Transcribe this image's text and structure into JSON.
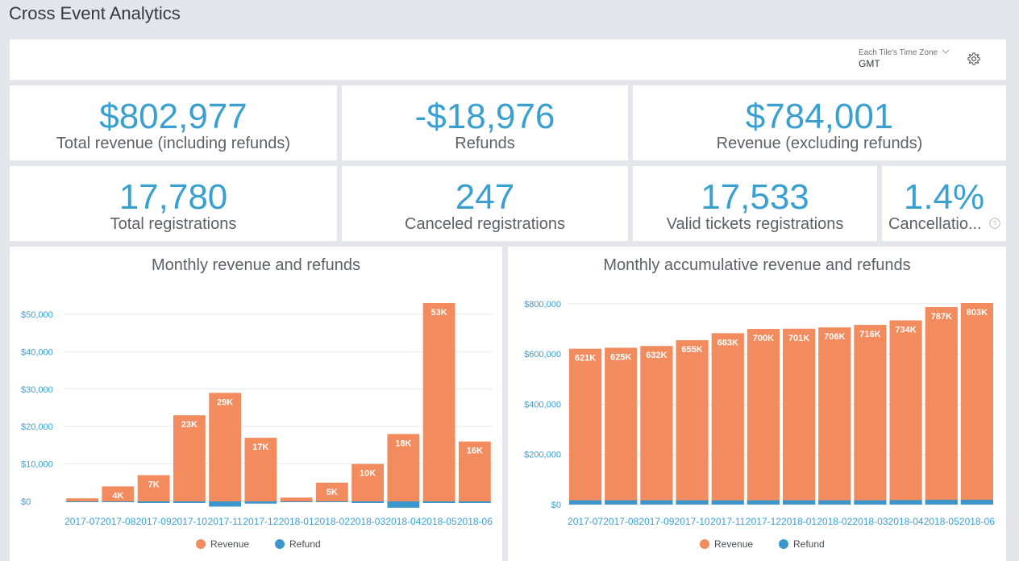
{
  "page": {
    "title": "Cross Event Analytics"
  },
  "filter": {
    "timezone_label": "Each Tile's Time Zone",
    "timezone_value": "GMT"
  },
  "kpis": {
    "total_revenue": {
      "value": "$802,977",
      "label": "Total revenue (including refunds)"
    },
    "refunds": {
      "value": "-$18,976",
      "label": "Refunds"
    },
    "revenue_excl": {
      "value": "$784,001",
      "label": "Revenue (excluding refunds)"
    },
    "total_registrations": {
      "value": "17,780",
      "label": "Total registrations"
    },
    "canceled_registrations": {
      "value": "247",
      "label": "Canceled registrations"
    },
    "valid_tickets": {
      "value": "17,533",
      "label": "Valid tickets registrations"
    },
    "cancellation_rate": {
      "value": "1.4%",
      "label": "Cancellatio..."
    }
  },
  "colors": {
    "revenue": "#f28b5e",
    "refund": "#3b96cc",
    "axis_text": "#3aa0d0",
    "grid": "#e6e8ec"
  },
  "chart_data": [
    {
      "type": "bar",
      "title": "Monthly revenue and refunds",
      "categories": [
        "2017-07",
        "2017-08",
        "2017-09",
        "2017-10",
        "2017-11",
        "2017-12",
        "2018-01",
        "2018-02",
        "2018-03",
        "2018-04",
        "2018-05",
        "2018-06"
      ],
      "series": [
        {
          "name": "Revenue",
          "values": [
            800,
            4000,
            7000,
            23000,
            29000,
            17000,
            1000,
            5000,
            10000,
            18000,
            53000,
            16000
          ]
        },
        {
          "name": "Refund",
          "values": [
            0,
            0,
            -200,
            -300,
            -1400,
            -600,
            0,
            0,
            -300,
            -1700,
            -400,
            -200
          ]
        }
      ],
      "data_labels": [
        "",
        "4K",
        "7K",
        "23K",
        "29K",
        "17K",
        "",
        "5K",
        "10K",
        "18K",
        "53K",
        "16K"
      ],
      "yticks": [
        "$0",
        "$10,000",
        "$20,000",
        "$30,000",
        "$40,000",
        "$50,000"
      ],
      "ytick_values": [
        0,
        10000,
        20000,
        30000,
        40000,
        50000
      ],
      "ylim": [
        0,
        53000
      ],
      "legend": [
        "Revenue",
        "Refund"
      ],
      "legend_position": "bottom",
      "grid": true
    },
    {
      "type": "bar",
      "title": "Monthly accumulative revenue and refunds",
      "categories": [
        "2017-07",
        "2017-08",
        "2017-09",
        "2017-10",
        "2017-11",
        "2017-12",
        "2018-01",
        "2018-02",
        "2018-03",
        "2018-04",
        "2018-05",
        "2018-06"
      ],
      "series": [
        {
          "name": "Revenue",
          "values": [
            621000,
            625000,
            632000,
            655000,
            683000,
            700000,
            701000,
            706000,
            716000,
            734000,
            787000,
            803000
          ]
        },
        {
          "name": "Refund",
          "values": [
            -17000,
            -17000,
            -17000,
            -17000,
            -17000,
            -17000,
            -17000,
            -17000,
            -17000,
            -18000,
            -19000,
            -19000
          ]
        }
      ],
      "data_labels": [
        "621K",
        "625K",
        "632K",
        "655K",
        "683K",
        "700K",
        "701K",
        "706K",
        "716K",
        "734K",
        "787K",
        "803K"
      ],
      "yticks": [
        "$0",
        "$200,000",
        "$400,000",
        "$600,000",
        "$800,000"
      ],
      "ytick_values": [
        0,
        200000,
        400000,
        600000,
        800000
      ],
      "ylim": [
        0,
        803000
      ],
      "legend": [
        "Revenue",
        "Refund"
      ],
      "legend_position": "bottom",
      "grid": true
    }
  ]
}
